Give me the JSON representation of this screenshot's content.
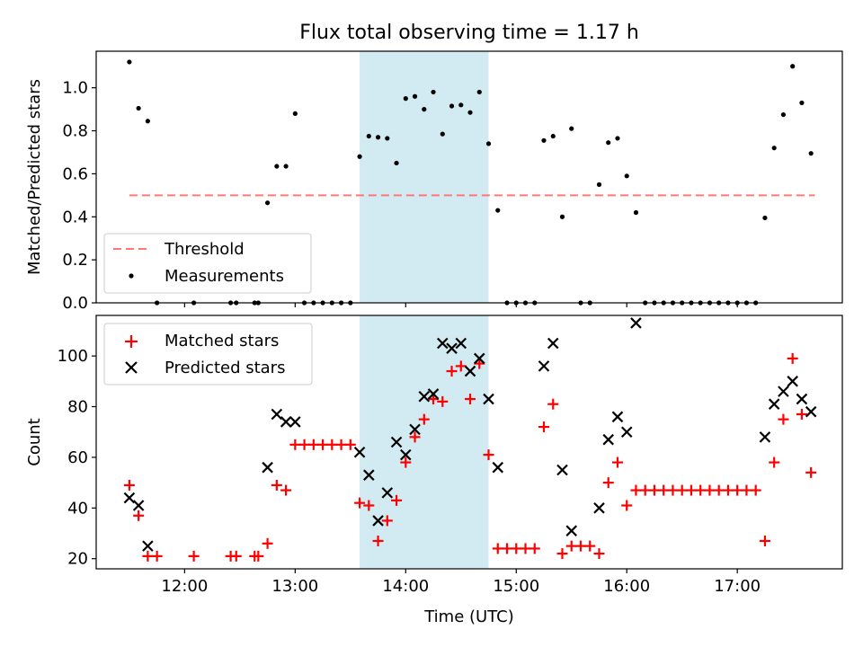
{
  "title": "Flux total observing time = 1.17 h",
  "colors": {
    "threshold": "#ff7777",
    "shade": "#add8e6",
    "matched": "#ff0000",
    "predicted": "#000000"
  },
  "chart_data": [
    {
      "type": "scatter",
      "ylabel": "Matched/Predicted stars",
      "ylim": [
        0,
        1.17
      ],
      "yticks": [
        0.0,
        0.2,
        0.4,
        0.6,
        0.8,
        1.0
      ],
      "ytick_labels": [
        "0.0",
        "0.2",
        "0.4",
        "0.6",
        "0.8",
        "1.0"
      ],
      "xlim": [
        "11:12",
        "17:57"
      ],
      "shaded_region": [
        "13:35",
        "14:45"
      ],
      "legend": {
        "placement": "lower left",
        "entries": [
          "Threshold",
          "Measurements"
        ]
      },
      "threshold": {
        "name": "Threshold",
        "value": 0.5,
        "x": [
          "11:30",
          "17:42"
        ]
      },
      "series": [
        {
          "name": "Measurements",
          "points": [
            [
              "11:30",
              1.12
            ],
            [
              "11:35",
              0.905
            ],
            [
              "11:40",
              0.845
            ],
            [
              "11:45",
              0.0
            ],
            [
              "12:05",
              0.0
            ],
            [
              "12:25",
              0.0
            ],
            [
              "12:28",
              0.0
            ],
            [
              "12:38",
              0.0
            ],
            [
              "12:40",
              0.0
            ],
            [
              "12:45",
              0.465
            ],
            [
              "12:50",
              0.635
            ],
            [
              "12:55",
              0.635
            ],
            [
              "13:00",
              0.88
            ],
            [
              "13:05",
              0.0
            ],
            [
              "13:10",
              0.0
            ],
            [
              "13:15",
              0.0
            ],
            [
              "13:20",
              0.0
            ],
            [
              "13:25",
              0.0
            ],
            [
              "13:30",
              0.0
            ],
            [
              "13:35",
              0.68
            ],
            [
              "13:40",
              0.775
            ],
            [
              "13:45",
              0.77
            ],
            [
              "13:50",
              0.765
            ],
            [
              "13:55",
              0.65
            ],
            [
              "14:00",
              0.95
            ],
            [
              "14:05",
              0.96
            ],
            [
              "14:10",
              0.9
            ],
            [
              "14:15",
              0.98
            ],
            [
              "14:20",
              0.785
            ],
            [
              "14:25",
              0.915
            ],
            [
              "14:30",
              0.92
            ],
            [
              "14:35",
              0.885
            ],
            [
              "14:40",
              0.98
            ],
            [
              "14:45",
              0.74
            ],
            [
              "14:50",
              0.43
            ],
            [
              "14:55",
              0.0
            ],
            [
              "15:00",
              0.0
            ],
            [
              "15:05",
              0.0
            ],
            [
              "15:10",
              0.0
            ],
            [
              "15:15",
              0.755
            ],
            [
              "15:20",
              0.775
            ],
            [
              "15:25",
              0.4
            ],
            [
              "15:30",
              0.81
            ],
            [
              "15:35",
              0.0
            ],
            [
              "15:40",
              0.0
            ],
            [
              "15:45",
              0.55
            ],
            [
              "15:50",
              0.745
            ],
            [
              "15:55",
              0.765
            ],
            [
              "16:00",
              0.59
            ],
            [
              "16:05",
              0.42
            ],
            [
              "16:10",
              0.0
            ],
            [
              "16:15",
              0.0
            ],
            [
              "16:20",
              0.0
            ],
            [
              "16:25",
              0.0
            ],
            [
              "16:30",
              0.0
            ],
            [
              "16:35",
              0.0
            ],
            [
              "16:40",
              0.0
            ],
            [
              "16:45",
              0.0
            ],
            [
              "16:50",
              0.0
            ],
            [
              "16:55",
              0.0
            ],
            [
              "17:00",
              0.0
            ],
            [
              "17:05",
              0.0
            ],
            [
              "17:10",
              0.0
            ],
            [
              "17:15",
              0.395
            ],
            [
              "17:20",
              0.72
            ],
            [
              "17:25",
              0.875
            ],
            [
              "17:30",
              1.1
            ],
            [
              "17:35",
              0.93
            ],
            [
              "17:40",
              0.695
            ]
          ]
        }
      ]
    },
    {
      "type": "scatter",
      "xlabel": "Time (UTC)",
      "ylabel": "Count",
      "ylim": [
        16,
        116
      ],
      "yticks": [
        20,
        40,
        60,
        80,
        100
      ],
      "ytick_labels": [
        "20",
        "40",
        "60",
        "80",
        "100"
      ],
      "xlim": [
        "11:12",
        "17:57"
      ],
      "xticks": [
        "12:00",
        "13:00",
        "14:00",
        "15:00",
        "16:00",
        "17:00"
      ],
      "shaded_region": [
        "13:35",
        "14:45"
      ],
      "legend": {
        "placement": "upper left",
        "entries": [
          "Matched stars",
          "Predicted stars"
        ]
      },
      "series": [
        {
          "name": "Matched stars",
          "marker": "plus",
          "points": [
            [
              "11:30",
              49
            ],
            [
              "11:35",
              37
            ],
            [
              "11:40",
              21
            ],
            [
              "11:45",
              21
            ],
            [
              "12:05",
              21
            ],
            [
              "12:25",
              21
            ],
            [
              "12:28",
              21
            ],
            [
              "12:38",
              21
            ],
            [
              "12:40",
              21
            ],
            [
              "12:45",
              26
            ],
            [
              "12:50",
              49
            ],
            [
              "12:55",
              47
            ],
            [
              "13:00",
              65
            ],
            [
              "13:05",
              65
            ],
            [
              "13:10",
              65
            ],
            [
              "13:15",
              65
            ],
            [
              "13:20",
              65
            ],
            [
              "13:25",
              65
            ],
            [
              "13:30",
              65
            ],
            [
              "13:35",
              42
            ],
            [
              "13:40",
              41
            ],
            [
              "13:45",
              27
            ],
            [
              "13:50",
              35
            ],
            [
              "13:55",
              43
            ],
            [
              "14:00",
              58
            ],
            [
              "14:05",
              68
            ],
            [
              "14:10",
              75
            ],
            [
              "14:15",
              83
            ],
            [
              "14:20",
              82
            ],
            [
              "14:25",
              94
            ],
            [
              "14:30",
              96
            ],
            [
              "14:35",
              83
            ],
            [
              "14:40",
              97
            ],
            [
              "14:45",
              61
            ],
            [
              "14:50",
              24
            ],
            [
              "14:55",
              24
            ],
            [
              "15:00",
              24
            ],
            [
              "15:05",
              24
            ],
            [
              "15:10",
              24
            ],
            [
              "15:15",
              72
            ],
            [
              "15:20",
              81
            ],
            [
              "15:25",
              22
            ],
            [
              "15:30",
              25
            ],
            [
              "15:35",
              25
            ],
            [
              "15:40",
              25
            ],
            [
              "15:45",
              22
            ],
            [
              "15:50",
              50
            ],
            [
              "15:55",
              58
            ],
            [
              "16:00",
              41
            ],
            [
              "16:05",
              47
            ],
            [
              "16:10",
              47
            ],
            [
              "16:15",
              47
            ],
            [
              "16:20",
              47
            ],
            [
              "16:25",
              47
            ],
            [
              "16:30",
              47
            ],
            [
              "16:35",
              47
            ],
            [
              "16:40",
              47
            ],
            [
              "16:45",
              47
            ],
            [
              "16:50",
              47
            ],
            [
              "16:55",
              47
            ],
            [
              "17:00",
              47
            ],
            [
              "17:05",
              47
            ],
            [
              "17:10",
              47
            ],
            [
              "17:15",
              27
            ],
            [
              "17:20",
              58
            ],
            [
              "17:25",
              75
            ],
            [
              "17:30",
              99
            ],
            [
              "17:35",
              77
            ],
            [
              "17:40",
              54
            ]
          ]
        },
        {
          "name": "Predicted stars",
          "marker": "x",
          "points": [
            [
              "11:30",
              44
            ],
            [
              "11:35",
              41
            ],
            [
              "11:40",
              25
            ],
            [
              "12:45",
              56
            ],
            [
              "12:50",
              77
            ],
            [
              "12:55",
              74
            ],
            [
              "13:00",
              74
            ],
            [
              "13:35",
              62
            ],
            [
              "13:40",
              53
            ],
            [
              "13:45",
              35
            ],
            [
              "13:50",
              46
            ],
            [
              "13:55",
              66
            ],
            [
              "14:00",
              61
            ],
            [
              "14:05",
              71
            ],
            [
              "14:10",
              84
            ],
            [
              "14:15",
              85
            ],
            [
              "14:20",
              105
            ],
            [
              "14:25",
              103
            ],
            [
              "14:30",
              105
            ],
            [
              "14:35",
              94
            ],
            [
              "14:40",
              99
            ],
            [
              "14:45",
              83
            ],
            [
              "14:50",
              56
            ],
            [
              "15:15",
              96
            ],
            [
              "15:20",
              105
            ],
            [
              "15:25",
              55
            ],
            [
              "15:30",
              31
            ],
            [
              "15:45",
              40
            ],
            [
              "15:50",
              67
            ],
            [
              "15:55",
              76
            ],
            [
              "16:00",
              70
            ],
            [
              "16:05",
              113
            ],
            [
              "17:15",
              68
            ],
            [
              "17:20",
              81
            ],
            [
              "17:25",
              86
            ],
            [
              "17:30",
              90
            ],
            [
              "17:35",
              83
            ],
            [
              "17:40",
              78
            ]
          ]
        }
      ]
    }
  ]
}
